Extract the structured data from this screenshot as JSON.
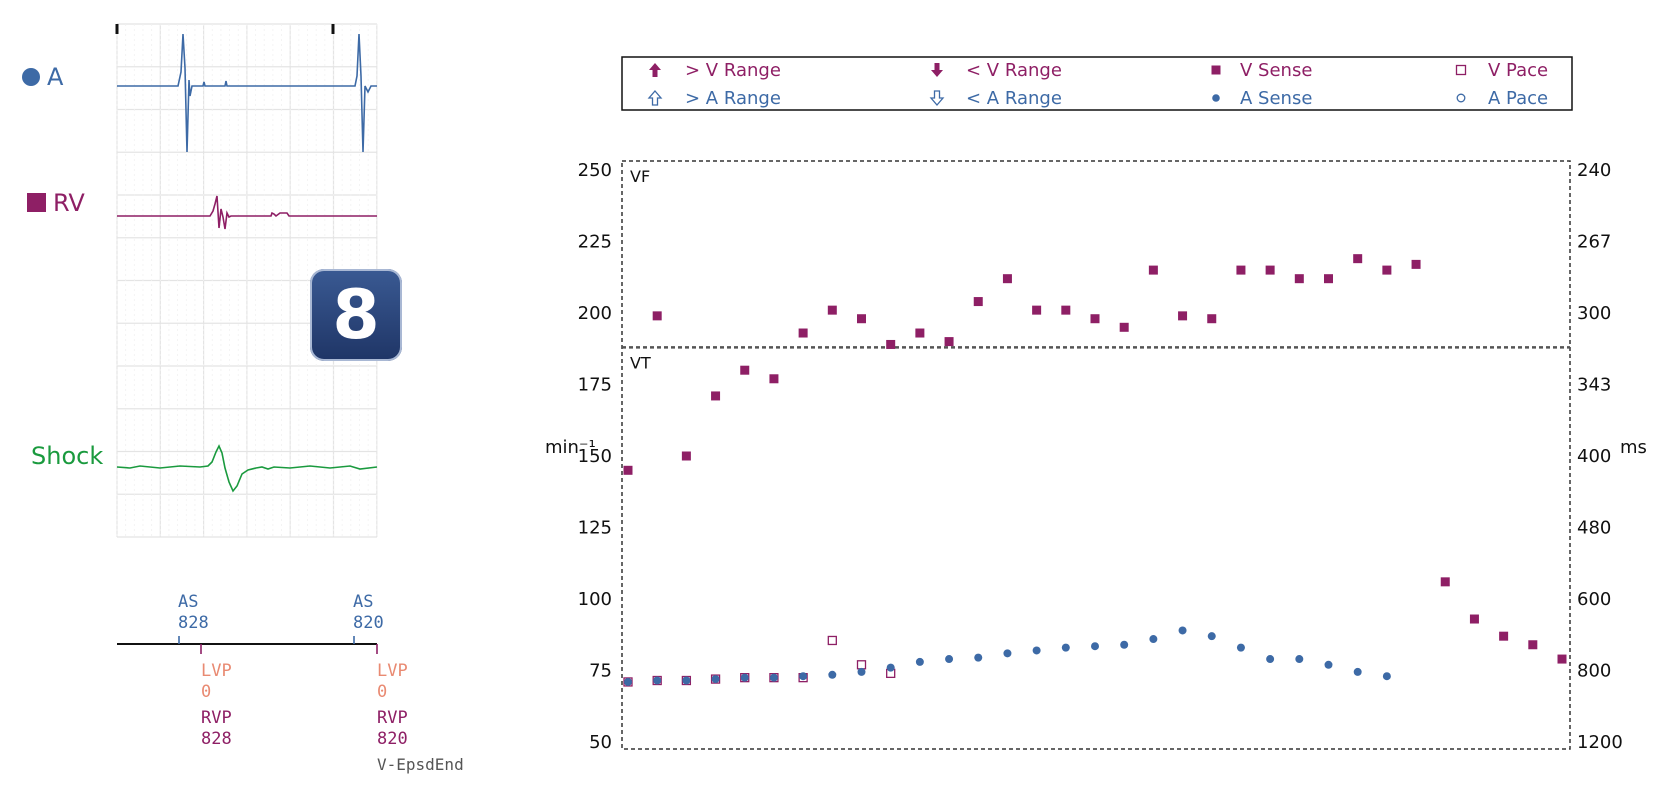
{
  "colors": {
    "atrial": "#3d6aa6",
    "ventricular": "#8e1f65",
    "shock": "#1a9a3e",
    "lv": "#e98a72",
    "grid": "#e4e4e4",
    "badge": "#2b4a82"
  },
  "egm": {
    "channels": [
      {
        "label": "A",
        "icon": "circle-icon"
      },
      {
        "label": "RV",
        "icon": "square-icon"
      },
      {
        "label": "Shock",
        "icon": ""
      }
    ]
  },
  "badge": {
    "number": "8"
  },
  "markers": {
    "top": [
      {
        "code": "AS",
        "value": "828"
      },
      {
        "code": "AS",
        "value": "820"
      }
    ],
    "bottom": [
      {
        "lv_code": "LVP",
        "lv_value": "0",
        "rv_code": "RVP",
        "rv_value": "828"
      },
      {
        "lv_code": "LVP",
        "lv_value": "0",
        "rv_code": "RVP",
        "rv_value": "820",
        "note": "V-EpsdEnd"
      }
    ]
  },
  "legend": [
    {
      "label": "> V Range",
      "symbol": "arrow-up-filled",
      "group": "V"
    },
    {
      "label": "< V Range",
      "symbol": "arrow-down-filled",
      "group": "V"
    },
    {
      "label": "V Sense",
      "symbol": "square-filled",
      "group": "V"
    },
    {
      "label": "V Pace",
      "symbol": "square-open",
      "group": "V"
    },
    {
      "label": "> A Range",
      "symbol": "arrow-up-open",
      "group": "A"
    },
    {
      "label": "< A Range",
      "symbol": "arrow-down-open",
      "group": "A"
    },
    {
      "label": "A Sense",
      "symbol": "circle-filled",
      "group": "A"
    },
    {
      "label": "A Pace",
      "symbol": "circle-open",
      "group": "A"
    }
  ],
  "chart_data": {
    "type": "scatter",
    "ylabel": "min⁻¹",
    "y2label": "ms",
    "ylim": [
      50,
      250
    ],
    "yticks": [
      50,
      75,
      100,
      125,
      150,
      175,
      200,
      225,
      250
    ],
    "y2ticks": [
      "1200",
      "800",
      "600",
      "480",
      "400",
      "343",
      "300",
      "267",
      "240"
    ],
    "zones": [
      {
        "label": "VF",
        "y": 250
      },
      {
        "label": "VT",
        "y": 188
      }
    ],
    "series": [
      {
        "name": "V Sense",
        "points": [
          [
            1,
            145
          ],
          [
            2,
            199
          ],
          [
            3,
            150
          ],
          [
            4,
            171
          ],
          [
            5,
            180
          ],
          [
            6,
            177
          ],
          [
            7,
            193
          ],
          [
            8,
            201
          ],
          [
            9,
            198
          ],
          [
            10,
            189
          ],
          [
            11,
            193
          ],
          [
            12,
            190
          ],
          [
            13,
            204
          ],
          [
            14,
            212
          ],
          [
            15,
            201
          ],
          [
            16,
            201
          ],
          [
            17,
            198
          ],
          [
            18,
            195
          ],
          [
            19,
            215
          ],
          [
            20,
            199
          ],
          [
            21,
            198
          ],
          [
            22,
            215
          ],
          [
            23,
            215
          ],
          [
            24,
            212
          ],
          [
            25,
            212
          ],
          [
            26,
            219
          ],
          [
            27,
            215
          ],
          [
            28,
            217
          ],
          [
            29,
            106
          ],
          [
            30,
            93
          ],
          [
            31,
            87
          ],
          [
            32,
            84
          ],
          [
            33,
            79
          ]
        ]
      },
      {
        "name": "V Pace",
        "points": [
          [
            1,
            71
          ],
          [
            2,
            71.5
          ],
          [
            3,
            71.5
          ],
          [
            4,
            72
          ],
          [
            5,
            72.5
          ],
          [
            6,
            72.5
          ],
          [
            7,
            72.5
          ],
          [
            8,
            85.5
          ],
          [
            9,
            77
          ],
          [
            10,
            74
          ]
        ]
      },
      {
        "name": "A Sense",
        "points": [
          [
            1,
            71
          ],
          [
            2,
            71.5
          ],
          [
            3,
            71.5
          ],
          [
            4,
            72
          ],
          [
            5,
            72.5
          ],
          [
            6,
            72.5
          ],
          [
            7,
            73
          ],
          [
            8,
            73.5
          ],
          [
            9,
            74.5
          ],
          [
            10,
            76
          ],
          [
            11,
            78
          ],
          [
            12,
            79
          ],
          [
            13,
            79.5
          ],
          [
            14,
            81
          ],
          [
            15,
            82
          ],
          [
            16,
            83
          ],
          [
            17,
            83.5
          ],
          [
            18,
            84
          ],
          [
            19,
            86
          ],
          [
            20,
            89
          ],
          [
            21,
            87
          ],
          [
            22,
            83
          ],
          [
            23,
            79
          ],
          [
            24,
            79
          ],
          [
            25,
            77
          ],
          [
            26,
            74.5
          ],
          [
            27,
            73
          ]
        ]
      }
    ]
  }
}
